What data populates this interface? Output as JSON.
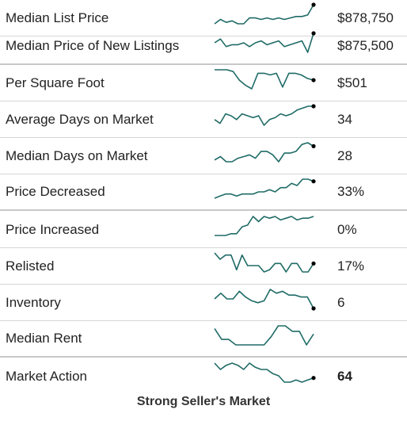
{
  "colors": {
    "sparkline": "#1f6b66",
    "endpoint": "#000000",
    "divider": "#d6d6d6"
  },
  "rows": [
    {
      "label": "Median List Price",
      "value": "$878,750",
      "trend": [
        3,
        6,
        4,
        5,
        3,
        3,
        7,
        7,
        6,
        7,
        6,
        7,
        6,
        7,
        8,
        8,
        9,
        16
      ],
      "end_marker": true
    },
    {
      "label": "Median Price of New Listings",
      "value": "$875,500",
      "trend": [
        10,
        12,
        8,
        9,
        9,
        10,
        8,
        10,
        11,
        9,
        10,
        11,
        8,
        9,
        10,
        11,
        5,
        15
      ],
      "end_marker": true
    },
    {
      "label": "Per Square Foot",
      "value": "$501",
      "trend": [
        14,
        14,
        14,
        13,
        8,
        5,
        3,
        12,
        12,
        11,
        12,
        4,
        12,
        12,
        11,
        9,
        8
      ],
      "end_marker": true
    },
    {
      "label": "Average Days on Market",
      "value": "34",
      "trend": [
        7,
        5,
        10,
        9,
        7,
        10,
        9,
        8,
        9,
        4,
        7,
        8,
        10,
        9,
        10,
        12,
        13,
        14,
        14
      ],
      "end_marker": true
    },
    {
      "label": "Median Days on Market",
      "value": "28",
      "trend": [
        3,
        5,
        2,
        2,
        4,
        5,
        6,
        4,
        8,
        8,
        6,
        2,
        7,
        7,
        8,
        12,
        13,
        11
      ],
      "end_marker": true
    },
    {
      "label": "Price Decreased",
      "value": "33%",
      "trend": [
        2,
        3,
        4,
        4,
        3,
        4,
        4,
        4,
        5,
        5,
        6,
        5,
        7,
        7,
        9,
        8,
        11,
        11,
        10
      ],
      "end_marker": true
    },
    {
      "label": "Price Increased",
      "value": "0%",
      "trend": [
        1,
        1,
        1,
        2,
        2,
        6,
        7,
        12,
        9,
        12,
        11,
        12,
        10,
        11,
        12,
        10,
        11,
        11,
        12
      ],
      "end_marker": false
    },
    {
      "label": "Relisted",
      "value": "17%",
      "trend": [
        11,
        8,
        10,
        10,
        3,
        10,
        5,
        5,
        5,
        2,
        3,
        6,
        6,
        2,
        6,
        6,
        2,
        2,
        6
      ],
      "end_marker": true
    },
    {
      "label": "Inventory",
      "value": "6",
      "trend": [
        7,
        10,
        7,
        7,
        11,
        8,
        6,
        5,
        6,
        12,
        10,
        11,
        9,
        9,
        8,
        8,
        2
      ],
      "end_marker": true
    },
    {
      "label": "Median Rent",
      "value": "",
      "trend": [
        12,
        8,
        8,
        6,
        6,
        6,
        6,
        6,
        9,
        13,
        13,
        11,
        11,
        6,
        10
      ],
      "end_marker": false
    },
    {
      "label": "Market Action",
      "value": "64",
      "trend": [
        14,
        11,
        13,
        14,
        13,
        11,
        14,
        12,
        11,
        11,
        9,
        8,
        5,
        5,
        6,
        5,
        6,
        7
      ],
      "end_marker": true
    }
  ],
  "footer": {
    "text": "Strong Seller's Market"
  }
}
